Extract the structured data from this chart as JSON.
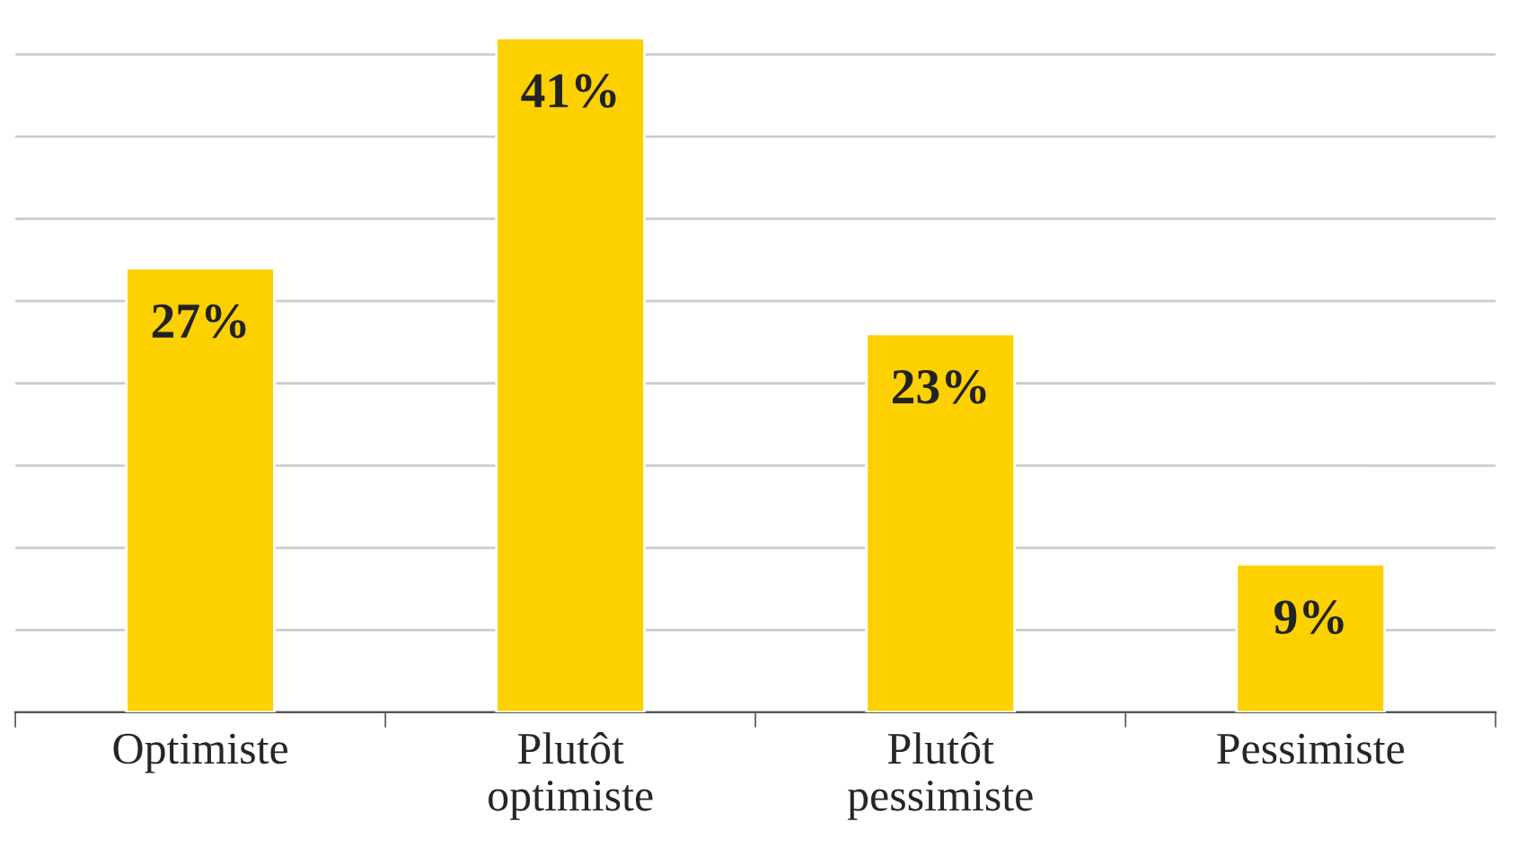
{
  "chart_data": {
    "type": "bar",
    "categories": [
      "Optimiste",
      "Plutôt\noptimiste",
      "Plutôt\npessimiste",
      "Pessimiste"
    ],
    "values": [
      27,
      41,
      23,
      9
    ],
    "color": "#fdd000",
    "value_labels": [
      "27%",
      "41%",
      "23%",
      "9%"
    ],
    "yticks": [
      {
        "value": 0,
        "label": null
      },
      {
        "value": 5,
        "label": null
      },
      {
        "value": 10,
        "label": null
      },
      {
        "value": 15,
        "label": null
      },
      {
        "value": 20,
        "label": null
      },
      {
        "value": 25,
        "label": null
      },
      {
        "value": 30,
        "label": null
      },
      {
        "value": 35,
        "label": null
      },
      {
        "value": 40,
        "label": null
      }
    ],
    "grid": "y",
    "tick_labels": "x"
  }
}
